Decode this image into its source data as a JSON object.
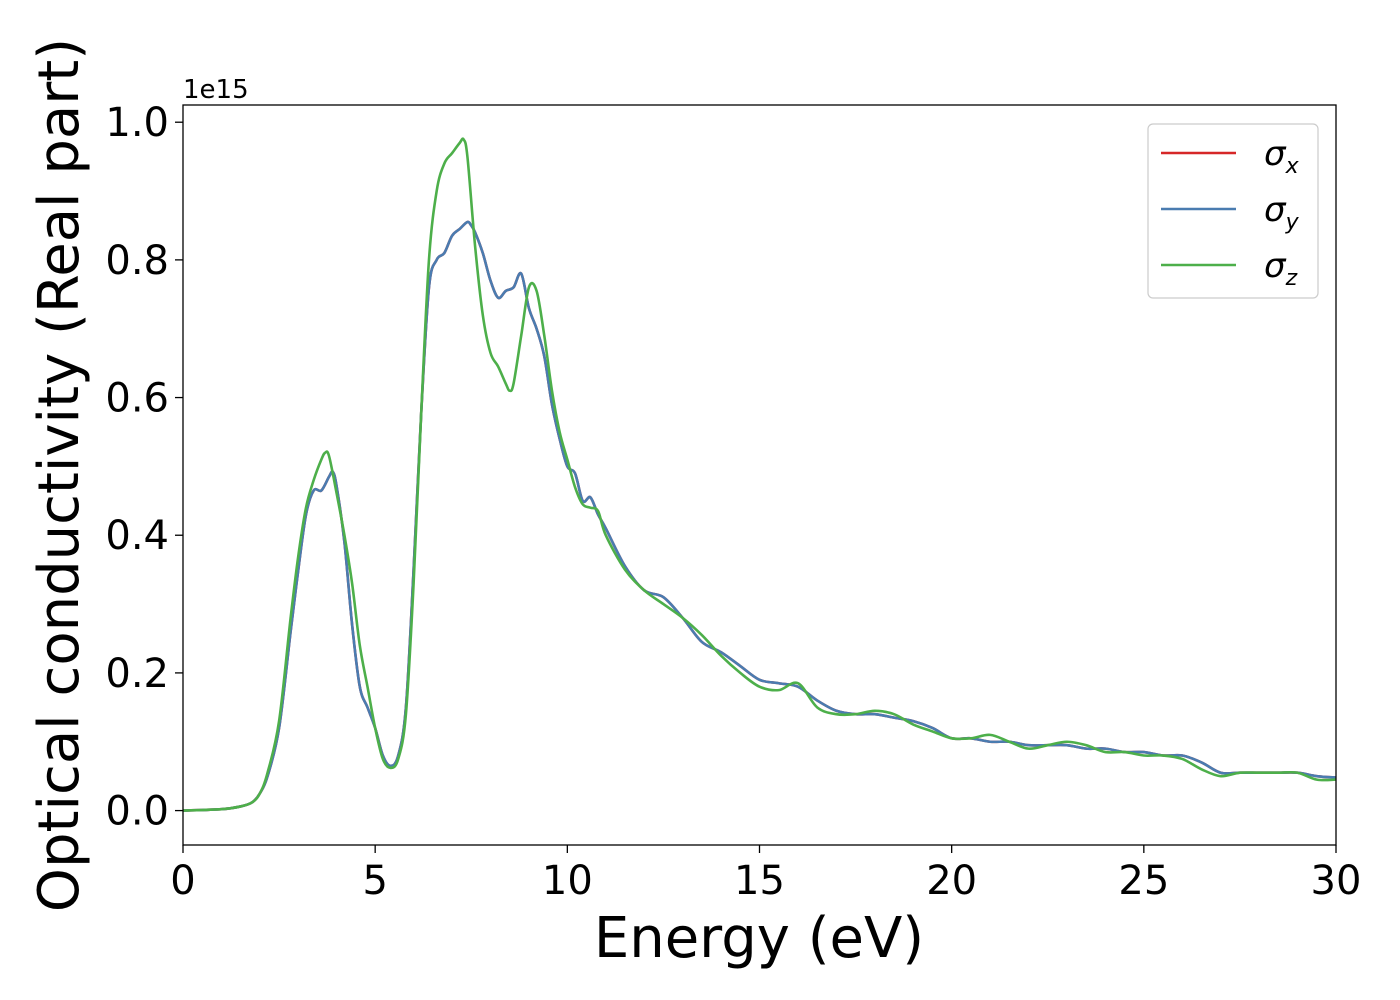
{
  "chart_data": {
    "type": "line",
    "xlabel": "Energy (eV)",
    "ylabel": "Optical conductivity (Real part)",
    "y_offset_text": "1e15",
    "xlim": [
      0,
      30
    ],
    "ylim": [
      -0.05,
      1.025
    ],
    "xticks": [
      0,
      5,
      10,
      15,
      20,
      25,
      30
    ],
    "yticks": [
      0.0,
      0.2,
      0.4,
      0.6,
      0.8,
      1.0
    ],
    "xtick_labels": [
      "0",
      "5",
      "10",
      "15",
      "20",
      "25",
      "30"
    ],
    "ytick_labels": [
      "0.0",
      "0.2",
      "0.4",
      "0.6",
      "0.8",
      "1.0"
    ],
    "grid": false,
    "legend_position": "top-right",
    "series": [
      {
        "name": "σ",
        "subscript": "x",
        "color": "#d62728",
        "x": [
          0,
          1,
          1.5,
          1.8,
          2.0,
          2.2,
          2.5,
          2.8,
          3.0,
          3.2,
          3.4,
          3.6,
          3.8,
          3.9,
          4.0,
          4.2,
          4.4,
          4.6,
          4.8,
          5.0,
          5.2,
          5.4,
          5.6,
          5.8,
          6.0,
          6.2,
          6.4,
          6.6,
          6.8,
          7.0,
          7.2,
          7.4,
          7.5,
          7.6,
          7.8,
          8.0,
          8.2,
          8.4,
          8.6,
          8.8,
          9.0,
          9.2,
          9.4,
          9.6,
          9.8,
          10.0,
          10.2,
          10.4,
          10.6,
          10.8,
          11.0,
          11.5,
          12.0,
          12.5,
          13.0,
          13.5,
          14.0,
          14.5,
          15.0,
          15.5,
          16.0,
          16.5,
          17.0,
          17.5,
          18.0,
          18.5,
          19.0,
          19.5,
          20.0,
          20.5,
          21.0,
          21.5,
          22.0,
          22.5,
          23.0,
          23.5,
          24.0,
          24.5,
          25.0,
          25.5,
          26.0,
          26.5,
          27.0,
          27.5,
          28.0,
          28.5,
          29.0,
          29.5,
          30.0
        ],
        "values": [
          0.0,
          0.002,
          0.006,
          0.012,
          0.025,
          0.05,
          0.12,
          0.26,
          0.35,
          0.43,
          0.465,
          0.465,
          0.485,
          0.492,
          0.47,
          0.39,
          0.27,
          0.18,
          0.15,
          0.12,
          0.08,
          0.065,
          0.08,
          0.15,
          0.35,
          0.58,
          0.76,
          0.8,
          0.81,
          0.835,
          0.845,
          0.855,
          0.85,
          0.84,
          0.81,
          0.77,
          0.745,
          0.755,
          0.76,
          0.78,
          0.73,
          0.7,
          0.66,
          0.59,
          0.54,
          0.5,
          0.49,
          0.45,
          0.455,
          0.43,
          0.41,
          0.355,
          0.32,
          0.31,
          0.28,
          0.245,
          0.23,
          0.21,
          0.19,
          0.185,
          0.18,
          0.16,
          0.145,
          0.14,
          0.14,
          0.135,
          0.13,
          0.12,
          0.105,
          0.105,
          0.1,
          0.1,
          0.095,
          0.095,
          0.095,
          0.09,
          0.09,
          0.085,
          0.085,
          0.08,
          0.08,
          0.07,
          0.055,
          0.055,
          0.055,
          0.055,
          0.055,
          0.05,
          0.048
        ]
      },
      {
        "name": "σ",
        "subscript": "y",
        "color": "#4a7cb0",
        "x": [
          0,
          1,
          1.5,
          1.8,
          2.0,
          2.2,
          2.5,
          2.8,
          3.0,
          3.2,
          3.4,
          3.6,
          3.8,
          3.9,
          4.0,
          4.2,
          4.4,
          4.6,
          4.8,
          5.0,
          5.2,
          5.4,
          5.6,
          5.8,
          6.0,
          6.2,
          6.4,
          6.6,
          6.8,
          7.0,
          7.2,
          7.4,
          7.5,
          7.6,
          7.8,
          8.0,
          8.2,
          8.4,
          8.6,
          8.8,
          9.0,
          9.2,
          9.4,
          9.6,
          9.8,
          10.0,
          10.2,
          10.4,
          10.6,
          10.8,
          11.0,
          11.5,
          12.0,
          12.5,
          13.0,
          13.5,
          14.0,
          14.5,
          15.0,
          15.5,
          16.0,
          16.5,
          17.0,
          17.5,
          18.0,
          18.5,
          19.0,
          19.5,
          20.0,
          20.5,
          21.0,
          21.5,
          22.0,
          22.5,
          23.0,
          23.5,
          24.0,
          24.5,
          25.0,
          25.5,
          26.0,
          26.5,
          27.0,
          27.5,
          28.0,
          28.5,
          29.0,
          29.5,
          30.0
        ],
        "values": [
          0.0,
          0.002,
          0.006,
          0.012,
          0.025,
          0.05,
          0.12,
          0.26,
          0.35,
          0.43,
          0.465,
          0.465,
          0.485,
          0.492,
          0.47,
          0.39,
          0.27,
          0.18,
          0.15,
          0.12,
          0.08,
          0.065,
          0.08,
          0.15,
          0.35,
          0.58,
          0.76,
          0.8,
          0.81,
          0.835,
          0.845,
          0.855,
          0.85,
          0.84,
          0.81,
          0.77,
          0.745,
          0.755,
          0.76,
          0.78,
          0.73,
          0.7,
          0.66,
          0.59,
          0.54,
          0.5,
          0.49,
          0.45,
          0.455,
          0.43,
          0.41,
          0.355,
          0.32,
          0.31,
          0.28,
          0.245,
          0.23,
          0.21,
          0.19,
          0.185,
          0.18,
          0.16,
          0.145,
          0.14,
          0.14,
          0.135,
          0.13,
          0.12,
          0.105,
          0.105,
          0.1,
          0.1,
          0.095,
          0.095,
          0.095,
          0.09,
          0.09,
          0.085,
          0.085,
          0.08,
          0.08,
          0.07,
          0.055,
          0.055,
          0.055,
          0.055,
          0.055,
          0.05,
          0.048
        ]
      },
      {
        "name": "σ",
        "subscript": "z",
        "color": "#4daf4a",
        "x": [
          0,
          1,
          1.5,
          1.8,
          2.0,
          2.2,
          2.5,
          2.8,
          3.0,
          3.2,
          3.4,
          3.6,
          3.7,
          3.8,
          4.0,
          4.2,
          4.4,
          4.6,
          4.8,
          5.0,
          5.2,
          5.4,
          5.6,
          5.8,
          6.0,
          6.2,
          6.4,
          6.6,
          6.8,
          7.0,
          7.2,
          7.3,
          7.4,
          7.6,
          7.8,
          8.0,
          8.2,
          8.4,
          8.5,
          8.6,
          8.8,
          9.0,
          9.2,
          9.4,
          9.6,
          9.8,
          10.0,
          10.2,
          10.4,
          10.6,
          10.8,
          11.0,
          11.5,
          12.0,
          12.5,
          13.0,
          13.5,
          14.0,
          14.5,
          15.0,
          15.5,
          16.0,
          16.5,
          17.0,
          17.5,
          18.0,
          18.5,
          19.0,
          19.5,
          20.0,
          20.5,
          21.0,
          21.5,
          22.0,
          22.5,
          23.0,
          23.5,
          24.0,
          24.5,
          25.0,
          25.5,
          26.0,
          26.5,
          27.0,
          27.5,
          28.0,
          28.5,
          29.0,
          29.5,
          30.0
        ],
        "values": [
          0.0,
          0.002,
          0.006,
          0.012,
          0.025,
          0.055,
          0.13,
          0.28,
          0.37,
          0.44,
          0.48,
          0.51,
          0.52,
          0.515,
          0.46,
          0.4,
          0.33,
          0.24,
          0.18,
          0.12,
          0.075,
          0.062,
          0.075,
          0.14,
          0.33,
          0.58,
          0.8,
          0.9,
          0.94,
          0.955,
          0.97,
          0.975,
          0.95,
          0.82,
          0.72,
          0.665,
          0.645,
          0.62,
          0.61,
          0.62,
          0.69,
          0.76,
          0.755,
          0.69,
          0.61,
          0.55,
          0.51,
          0.47,
          0.445,
          0.44,
          0.435,
          0.4,
          0.35,
          0.32,
          0.3,
          0.28,
          0.255,
          0.225,
          0.2,
          0.18,
          0.175,
          0.185,
          0.15,
          0.14,
          0.14,
          0.145,
          0.14,
          0.125,
          0.115,
          0.105,
          0.105,
          0.11,
          0.1,
          0.09,
          0.095,
          0.1,
          0.095,
          0.085,
          0.085,
          0.08,
          0.08,
          0.075,
          0.06,
          0.05,
          0.055,
          0.055,
          0.055,
          0.055,
          0.045,
          0.045
        ]
      }
    ]
  }
}
